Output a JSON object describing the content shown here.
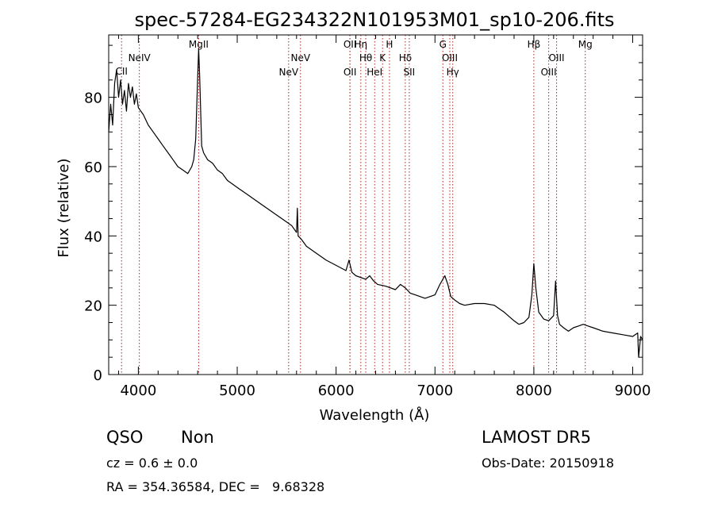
{
  "chart_data": {
    "type": "line",
    "title": "spec-57284-EG234322N101953M01_sp10-206.fits",
    "xlabel": "Wavelength (Å)",
    "ylabel": "Flux (relative)",
    "xlim": [
      3700,
      9100
    ],
    "ylim": [
      0,
      98
    ],
    "xticks": [
      4000,
      5000,
      6000,
      7000,
      8000,
      9000
    ],
    "yticks": [
      0,
      20,
      40,
      60,
      80
    ],
    "grid": false,
    "series": [
      {
        "x": [
          3700,
          3720,
          3740,
          3760,
          3780,
          3800,
          3820,
          3840,
          3860,
          3880,
          3900,
          3920,
          3940,
          3960,
          3980,
          4000,
          4050,
          4100,
          4150,
          4200,
          4250,
          4300,
          4350,
          4400,
          4450,
          4500,
          4540,
          4560,
          4580,
          4600,
          4610,
          4620,
          4640,
          4660,
          4700,
          4750,
          4800,
          4850,
          4900,
          4950,
          5000,
          5100,
          5200,
          5300,
          5400,
          5500,
          5550,
          5600,
          5608,
          5616,
          5650,
          5700,
          5800,
          5900,
          6000,
          6100,
          6130,
          6160,
          6200,
          6300,
          6340,
          6380,
          6420,
          6500,
          6600,
          6650,
          6700,
          6750,
          6800,
          6900,
          7000,
          7050,
          7100,
          7130,
          7160,
          7200,
          7250,
          7300,
          7400,
          7500,
          7600,
          7700,
          7800,
          7850,
          7900,
          7950,
          7980,
          8000,
          8020,
          8050,
          8100,
          8150,
          8200,
          8220,
          8240,
          8260,
          8300,
          8350,
          8400,
          8450,
          8500,
          8550,
          8600,
          8700,
          8800,
          8900,
          9000,
          9050,
          9060,
          9080,
          9100
        ],
        "y": [
          70,
          78,
          72,
          84,
          88,
          80,
          85,
          78,
          82,
          76,
          84,
          80,
          83,
          78,
          81,
          77,
          75,
          72,
          70,
          68,
          66,
          64,
          62,
          60,
          59,
          58,
          60,
          62,
          68,
          86,
          94,
          86,
          66,
          64,
          62,
          61,
          59,
          58,
          56,
          55,
          54,
          52,
          50,
          48,
          46,
          44,
          43,
          41,
          48,
          40,
          39,
          37,
          35,
          33,
          31.5,
          30,
          33,
          29.5,
          28.5,
          27.5,
          28.5,
          27,
          26,
          25.5,
          24.5,
          26,
          25,
          23.5,
          23,
          22,
          23,
          26,
          28.5,
          26,
          22.5,
          21.5,
          20.5,
          20,
          20.5,
          20.5,
          20,
          18,
          15.5,
          14.5,
          15,
          16.5,
          23,
          32,
          25,
          18,
          16,
          15.5,
          17,
          27,
          17,
          14.5,
          13.5,
          12.5,
          13.5,
          14,
          14.5,
          14,
          13.5,
          12.5,
          12,
          11.5,
          11,
          12,
          5,
          11,
          10
        ]
      }
    ],
    "lines": [
      {
        "label": "CII",
        "x": 3830,
        "row": 3
      },
      {
        "label": "NeIV",
        "x": 4010,
        "row": 1
      },
      {
        "label": "MgII",
        "x": 4610,
        "row": 0
      },
      {
        "label": "NeV",
        "x": 5520,
        "row": 2
      },
      {
        "label": "NeV",
        "x": 5640,
        "row": 1
      },
      {
        "label": "OII",
        "x": 6140,
        "row": 0
      },
      {
        "label": "OII",
        "x": 6140,
        "row": 2
      },
      {
        "label": "Hη",
        "x": 6250,
        "row": 0
      },
      {
        "label": "Hθ",
        "x": 6300,
        "row": 1
      },
      {
        "label": "HeI",
        "x": 6390,
        "row": 2
      },
      {
        "label": "K",
        "x": 6470,
        "row": 1
      },
      {
        "label": "H",
        "x": 6540,
        "row": 0
      },
      {
        "label": "Hδ",
        "x": 6700,
        "row": 1
      },
      {
        "label": "SII",
        "x": 6740,
        "row": 2
      },
      {
        "label": "G",
        "x": 7080,
        "row": 0
      },
      {
        "label": "OIII",
        "x": 7150,
        "row": 1
      },
      {
        "label": "Hγ",
        "x": 7180,
        "row": 2
      },
      {
        "label": "Hβ",
        "x": 8000,
        "row": 0
      },
      {
        "label": "OIII",
        "x": 8150,
        "row": 2
      },
      {
        "label": "OIII",
        "x": 8230,
        "row": 1
      },
      {
        "label": "Mg",
        "x": 8520,
        "row": 0
      }
    ]
  },
  "info": {
    "class": "QSO",
    "subclass": "Non",
    "survey": "LAMOST DR5",
    "cz": "cz = 0.6 ± 0.0",
    "obs_date": "Obs-Date: 20150918",
    "radec": "RA = 354.36584, DEC =   9.68328"
  },
  "colors": {
    "axis": "#000000",
    "spectrum": "#000000",
    "line_marker": "#b22222"
  }
}
